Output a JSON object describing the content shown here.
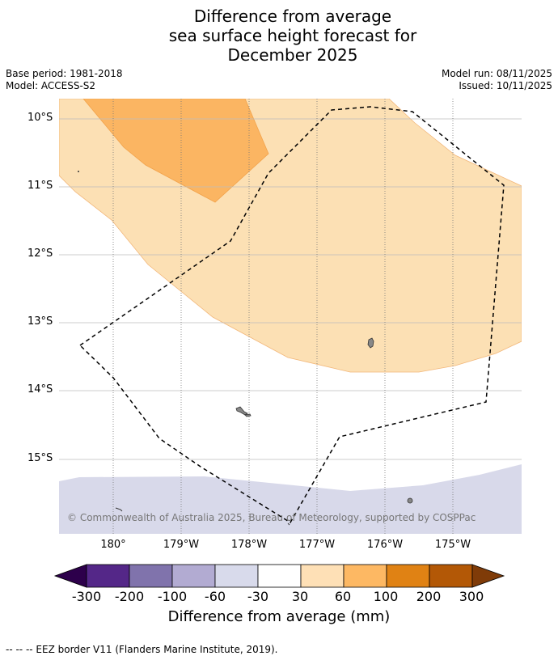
{
  "title": {
    "line1": "Difference from average",
    "line2": "sea surface height forecast for",
    "line3": "December 2025"
  },
  "meta": {
    "base_period": "Base period: 1981-2018",
    "model": "Model: ACCESS-S2",
    "model_run": "Model run: 08/11/2025",
    "issued": "Issued: 10/11/2025"
  },
  "map": {
    "lat_labels": [
      "10°S",
      "11°S",
      "12°S",
      "13°S",
      "14°S",
      "15°S"
    ],
    "lon_labels": [
      "180°",
      "179°W",
      "178°W",
      "177°W",
      "176°W",
      "175°W"
    ],
    "copyright": "© Commonwealth of Australia 2025, Bureau of Meteorology, supported by COSPPac",
    "colors": {
      "light_orange": "#fce0b4",
      "mid_orange": "#fbb562",
      "light_purple": "#d8d9ea",
      "land": "#888888",
      "eez": "#000000"
    }
  },
  "legend": {
    "ticks": [
      "-300",
      "-200",
      "-100",
      "-60",
      "-30",
      "30",
      "60",
      "100",
      "200",
      "300"
    ],
    "colors": [
      "#2d004b",
      "#542788",
      "#8073ac",
      "#b2abd2",
      "#d8daeb",
      "#ffffff",
      "#fee0b6",
      "#fdb863",
      "#e08214",
      "#b35806",
      "#7f3b08"
    ],
    "title": "Difference from average (mm)"
  },
  "footnote": "-- -- -- EEZ border V11 (Flanders Marine Institute, 2019)."
}
